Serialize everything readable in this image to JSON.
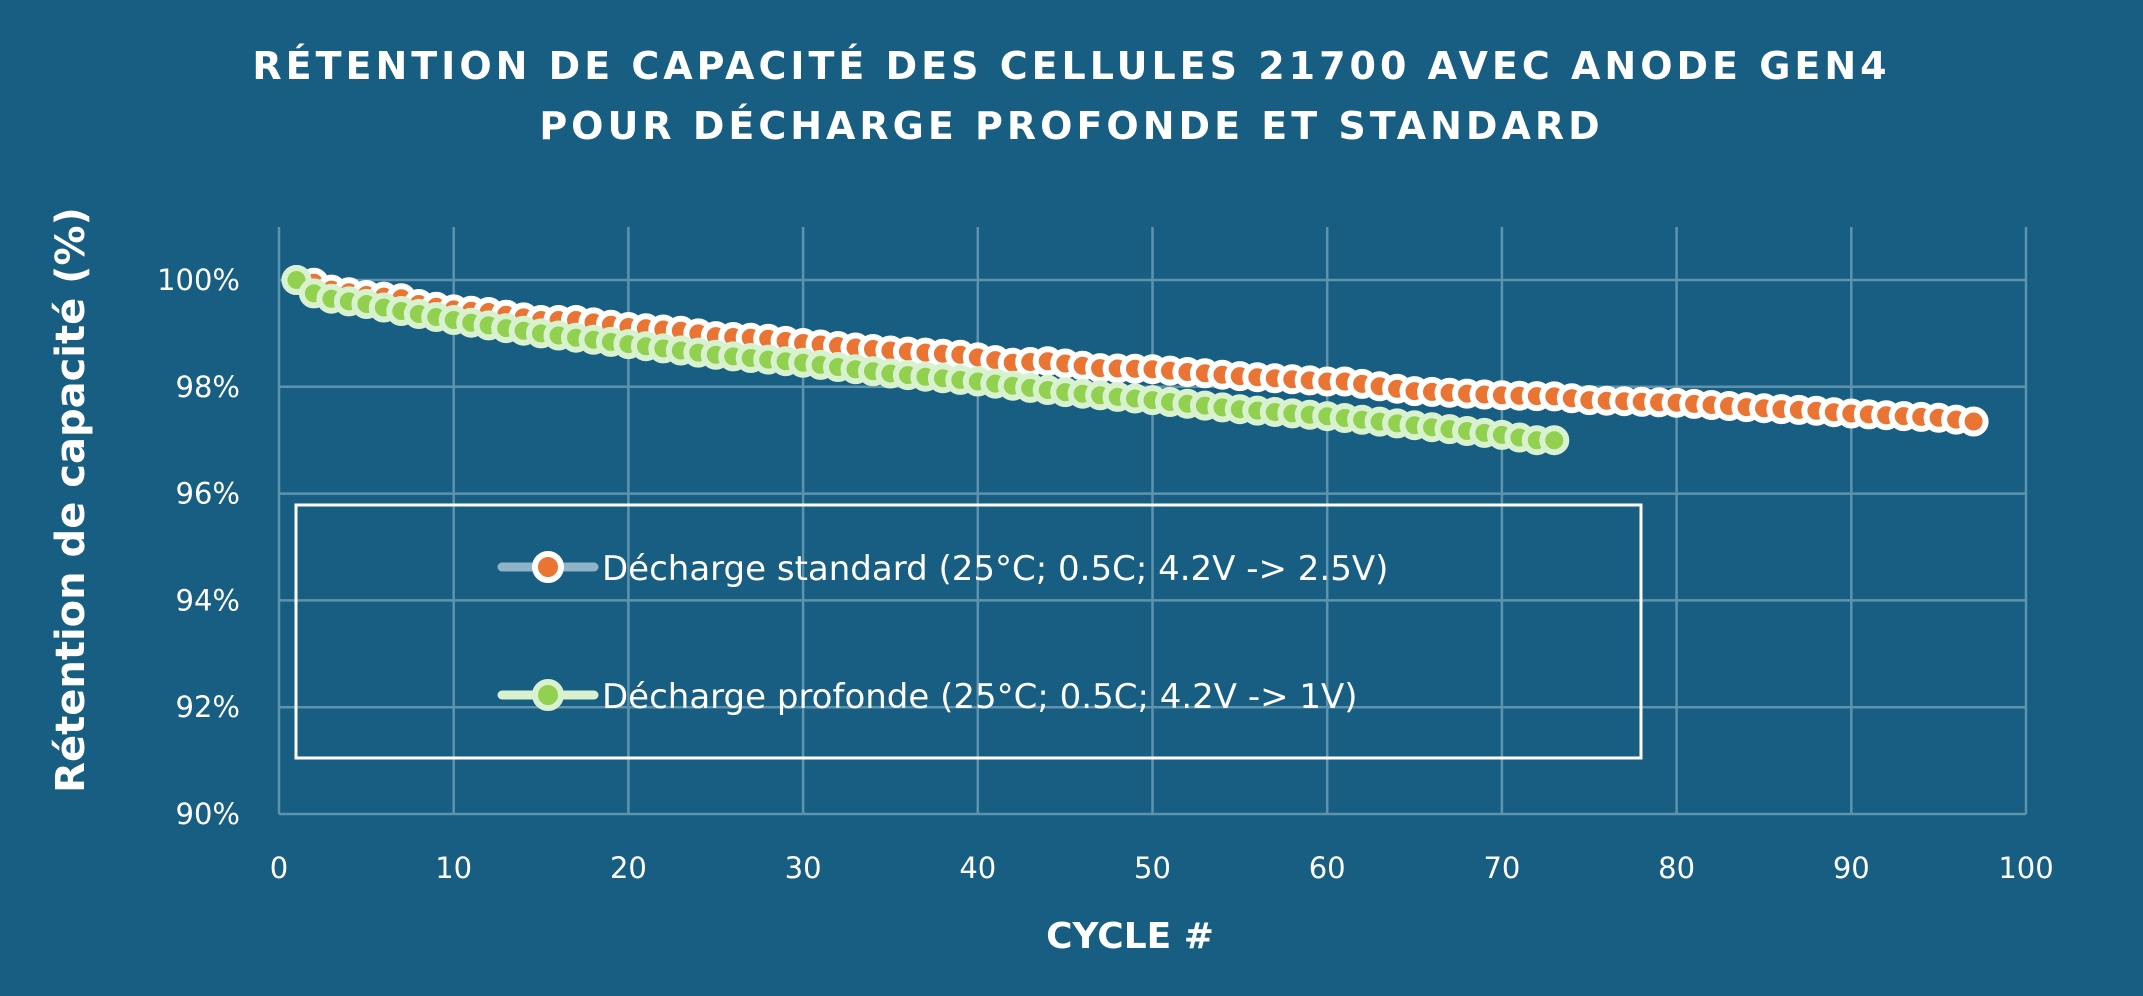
{
  "title": {
    "line1": "RÉTENTION DE CAPACITÉ DES CELLULES 21700 AVEC ANODE GEN4",
    "line2": "POUR DÉCHARGE PROFONDE ET STANDARD"
  },
  "colors": {
    "background": "#175e82",
    "grid": "#5f93ad",
    "standard_fill": "#ea7434",
    "standard_ring": "#ffffff",
    "standard_line": "#8fb4c7",
    "deep_fill": "#92d050",
    "deep_ring": "#d8f2d0"
  },
  "chart_data": {
    "type": "scatter",
    "title": "RÉTENTION DE CAPACITÉ DES CELLULES 21700 AVEC ANODE GEN4 POUR DÉCHARGE PROFONDE ET STANDARD",
    "xlabel": "CYCLE #",
    "ylabel": "Rétention de capacité (%)",
    "xlim": [
      0,
      100
    ],
    "ylim": [
      90,
      100
    ],
    "xticks": [
      "0",
      "10",
      "20",
      "30",
      "40",
      "50",
      "60",
      "70",
      "80",
      "90",
      "100"
    ],
    "xtick_values": [
      0,
      10,
      20,
      30,
      40,
      50,
      60,
      70,
      80,
      90,
      100
    ],
    "yticks": [
      "90%",
      "92%",
      "94%",
      "96%",
      "98%",
      "100%"
    ],
    "ytick_values": [
      90,
      92,
      94,
      96,
      98,
      100
    ],
    "grid": true,
    "legend_position": "center-left inside plot",
    "series": [
      {
        "name": "Décharge standard (25°C; 0.5C;  4.2V -> 2.5V)",
        "x_start": 1,
        "anchors": [
          [
            1,
            100.0
          ],
          [
            2,
            99.95
          ],
          [
            3,
            99.82
          ],
          [
            5,
            99.72
          ],
          [
            7,
            99.66
          ],
          [
            8,
            99.55
          ],
          [
            10,
            99.45
          ],
          [
            12,
            99.4
          ],
          [
            15,
            99.25
          ],
          [
            17,
            99.25
          ],
          [
            20,
            99.12
          ],
          [
            23,
            99.05
          ],
          [
            25,
            98.95
          ],
          [
            28,
            98.9
          ],
          [
            30,
            98.82
          ],
          [
            35,
            98.68
          ],
          [
            39,
            98.6
          ],
          [
            40,
            98.55
          ],
          [
            42,
            98.45
          ],
          [
            44,
            98.48
          ],
          [
            47,
            98.35
          ],
          [
            50,
            98.33
          ],
          [
            55,
            98.2
          ],
          [
            60,
            98.1
          ],
          [
            61,
            98.1
          ],
          [
            65,
            97.92
          ],
          [
            70,
            97.84
          ],
          [
            73,
            97.82
          ],
          [
            75,
            97.75
          ],
          [
            80,
            97.7
          ],
          [
            85,
            97.6
          ],
          [
            88,
            97.55
          ],
          [
            90,
            97.5
          ],
          [
            95,
            97.42
          ],
          [
            97,
            97.35
          ]
        ],
        "x_end": 97
      },
      {
        "name": "Décharge profonde (25°C; 0.5C;  4.2V -> 1V)",
        "x_start": 1,
        "anchors": [
          [
            1,
            100.0
          ],
          [
            2,
            99.75
          ],
          [
            3,
            99.65
          ],
          [
            5,
            99.55
          ],
          [
            7,
            99.42
          ],
          [
            10,
            99.25
          ],
          [
            15,
            99.0
          ],
          [
            20,
            98.8
          ],
          [
            25,
            98.6
          ],
          [
            30,
            98.45
          ],
          [
            35,
            98.25
          ],
          [
            40,
            98.1
          ],
          [
            45,
            97.9
          ],
          [
            50,
            97.75
          ],
          [
            55,
            97.58
          ],
          [
            60,
            97.45
          ],
          [
            65,
            97.28
          ],
          [
            70,
            97.1
          ],
          [
            72,
            97.0
          ],
          [
            73,
            97.0
          ]
        ],
        "x_end": 73
      }
    ]
  },
  "legend": {
    "items": [
      {
        "label": "Décharge standard (25°C; 0.5C;  4.2V -> 2.5V)"
      },
      {
        "label": "Décharge profonde (25°C; 0.5C;  4.2V -> 1V)"
      }
    ]
  }
}
